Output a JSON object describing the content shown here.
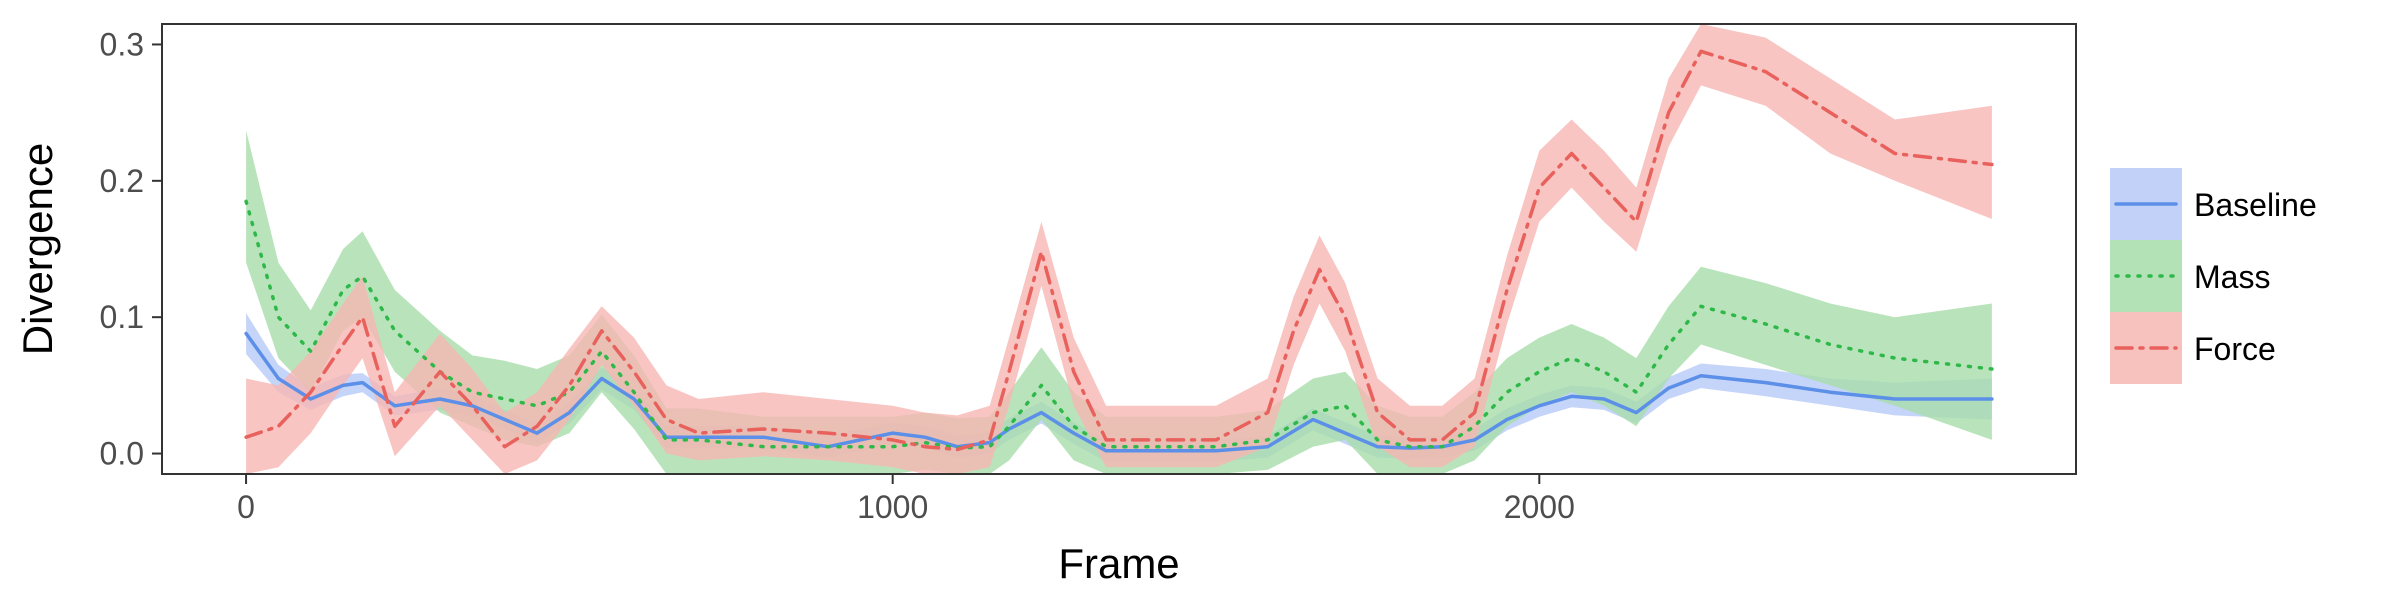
{
  "chart_data": {
    "type": "line",
    "title": "",
    "xlabel": "Frame",
    "ylabel": "Divergence",
    "xlim": [
      -130,
      2830
    ],
    "ylim": [
      -0.015,
      0.315
    ],
    "xticks": [
      0,
      1000,
      2000
    ],
    "xtick_labels": [
      "0",
      "1000",
      "2000"
    ],
    "yticks": [
      0.0,
      0.1,
      0.2,
      0.3
    ],
    "ytick_labels": [
      "0.0",
      "0.1",
      "0.2",
      "0.3"
    ],
    "grid": false,
    "legend_position": "right",
    "series": [
      {
        "name": "Baseline",
        "color": "#5b8fe8",
        "fill": "#b7c9f7",
        "line_style": "solid",
        "x": [
          0,
          50,
          100,
          150,
          180,
          230,
          300,
          350,
          400,
          450,
          500,
          550,
          600,
          650,
          700,
          800,
          900,
          1000,
          1050,
          1100,
          1150,
          1180,
          1230,
          1280,
          1330,
          1400,
          1500,
          1580,
          1650,
          1700,
          1750,
          1800,
          1850,
          1900,
          1950,
          2000,
          2050,
          2100,
          2150,
          2200,
          2250,
          2350,
          2450,
          2550,
          2700
        ],
        "y": [
          0.088,
          0.055,
          0.04,
          0.05,
          0.052,
          0.035,
          0.04,
          0.035,
          0.025,
          0.015,
          0.03,
          0.055,
          0.04,
          0.012,
          0.012,
          0.012,
          0.005,
          0.015,
          0.012,
          0.005,
          0.008,
          0.018,
          0.03,
          0.015,
          0.002,
          0.002,
          0.002,
          0.005,
          0.025,
          0.015,
          0.005,
          0.004,
          0.005,
          0.01,
          0.025,
          0.035,
          0.042,
          0.04,
          0.03,
          0.048,
          0.057,
          0.052,
          0.045,
          0.04,
          0.04
        ],
        "lower": [
          0.073,
          0.045,
          0.032,
          0.042,
          0.045,
          0.028,
          0.032,
          0.027,
          0.018,
          0.008,
          0.022,
          0.047,
          0.032,
          0.004,
          0.004,
          0.004,
          -0.003,
          0.007,
          0.004,
          -0.003,
          0.0,
          0.01,
          0.022,
          0.007,
          -0.006,
          -0.006,
          -0.006,
          -0.003,
          0.017,
          0.007,
          -0.003,
          -0.004,
          -0.003,
          0.002,
          0.017,
          0.027,
          0.034,
          0.032,
          0.022,
          0.04,
          0.048,
          0.042,
          0.035,
          0.028,
          0.025
        ],
        "upper": [
          0.103,
          0.065,
          0.048,
          0.058,
          0.059,
          0.042,
          0.048,
          0.043,
          0.032,
          0.022,
          0.038,
          0.063,
          0.048,
          0.02,
          0.02,
          0.02,
          0.013,
          0.023,
          0.02,
          0.013,
          0.016,
          0.026,
          0.038,
          0.023,
          0.01,
          0.01,
          0.01,
          0.013,
          0.033,
          0.023,
          0.013,
          0.012,
          0.013,
          0.018,
          0.033,
          0.043,
          0.05,
          0.048,
          0.038,
          0.056,
          0.066,
          0.062,
          0.055,
          0.052,
          0.055
        ]
      },
      {
        "name": "Mass",
        "color": "#2fb84a",
        "fill": "#a7ddaa",
        "line_style": "dotted",
        "x": [
          0,
          50,
          100,
          150,
          180,
          230,
          300,
          350,
          400,
          450,
          500,
          550,
          600,
          650,
          700,
          800,
          900,
          1000,
          1050,
          1100,
          1150,
          1180,
          1230,
          1280,
          1330,
          1400,
          1500,
          1580,
          1650,
          1700,
          1750,
          1800,
          1850,
          1900,
          1950,
          2000,
          2050,
          2100,
          2150,
          2200,
          2250,
          2350,
          2450,
          2550,
          2700
        ],
        "y": [
          0.185,
          0.1,
          0.075,
          0.12,
          0.13,
          0.09,
          0.06,
          0.045,
          0.04,
          0.035,
          0.045,
          0.075,
          0.045,
          0.01,
          0.01,
          0.005,
          0.005,
          0.005,
          0.008,
          0.004,
          0.005,
          0.02,
          0.05,
          0.02,
          0.005,
          0.005,
          0.005,
          0.01,
          0.03,
          0.035,
          0.01,
          0.005,
          0.005,
          0.02,
          0.045,
          0.06,
          0.07,
          0.06,
          0.045,
          0.08,
          0.108,
          0.095,
          0.08,
          0.07,
          0.062
        ],
        "lower": [
          0.14,
          0.07,
          0.045,
          0.09,
          0.1,
          0.06,
          0.03,
          0.02,
          0.01,
          0.005,
          0.015,
          0.045,
          0.018,
          -0.015,
          -0.015,
          -0.015,
          -0.015,
          -0.015,
          -0.012,
          -0.015,
          -0.015,
          -0.005,
          0.025,
          -0.005,
          -0.015,
          -0.015,
          -0.015,
          -0.012,
          0.005,
          0.01,
          -0.015,
          -0.015,
          -0.015,
          -0.005,
          0.02,
          0.035,
          0.045,
          0.035,
          0.02,
          0.055,
          0.08,
          0.065,
          0.05,
          0.035,
          0.01
        ],
        "upper": [
          0.237,
          0.14,
          0.105,
          0.15,
          0.163,
          0.12,
          0.09,
          0.072,
          0.068,
          0.062,
          0.072,
          0.102,
          0.072,
          0.033,
          0.033,
          0.027,
          0.027,
          0.027,
          0.03,
          0.026,
          0.027,
          0.045,
          0.078,
          0.045,
          0.027,
          0.027,
          0.027,
          0.032,
          0.055,
          0.06,
          0.035,
          0.027,
          0.027,
          0.045,
          0.07,
          0.085,
          0.095,
          0.085,
          0.07,
          0.108,
          0.137,
          0.125,
          0.11,
          0.1,
          0.11
        ]
      },
      {
        "name": "Force",
        "color": "#e8615c",
        "fill": "#f6b6b3",
        "line_style": "dashdot",
        "x": [
          0,
          50,
          100,
          150,
          180,
          230,
          300,
          350,
          400,
          450,
          500,
          550,
          600,
          650,
          700,
          800,
          900,
          1000,
          1050,
          1100,
          1150,
          1180,
          1230,
          1280,
          1330,
          1400,
          1500,
          1580,
          1620,
          1660,
          1700,
          1750,
          1800,
          1850,
          1900,
          1950,
          2000,
          2050,
          2100,
          2150,
          2200,
          2250,
          2350,
          2450,
          2550,
          2700
        ],
        "y": [
          0.012,
          0.02,
          0.045,
          0.08,
          0.1,
          0.02,
          0.06,
          0.035,
          0.005,
          0.02,
          0.05,
          0.09,
          0.06,
          0.025,
          0.015,
          0.018,
          0.015,
          0.01,
          0.005,
          0.003,
          0.01,
          0.06,
          0.148,
          0.06,
          0.01,
          0.01,
          0.01,
          0.03,
          0.09,
          0.135,
          0.1,
          0.03,
          0.01,
          0.01,
          0.03,
          0.12,
          0.195,
          0.22,
          0.195,
          0.17,
          0.25,
          0.295,
          0.28,
          0.25,
          0.22,
          0.212
        ],
        "lower": [
          -0.015,
          -0.01,
          0.015,
          0.05,
          0.07,
          -0.002,
          0.035,
          0.01,
          -0.015,
          -0.005,
          0.025,
          0.065,
          0.035,
          0.0,
          -0.005,
          -0.002,
          -0.005,
          -0.01,
          -0.015,
          -0.015,
          -0.01,
          0.035,
          0.123,
          0.035,
          -0.01,
          -0.01,
          -0.01,
          0.005,
          0.065,
          0.11,
          0.075,
          0.005,
          -0.01,
          -0.01,
          0.005,
          0.095,
          0.17,
          0.195,
          0.17,
          0.148,
          0.225,
          0.27,
          0.255,
          0.22,
          0.2,
          0.172
        ],
        "upper": [
          0.055,
          0.05,
          0.075,
          0.11,
          0.13,
          0.045,
          0.088,
          0.062,
          0.03,
          0.045,
          0.077,
          0.108,
          0.085,
          0.05,
          0.04,
          0.045,
          0.04,
          0.035,
          0.03,
          0.028,
          0.035,
          0.085,
          0.17,
          0.085,
          0.035,
          0.035,
          0.035,
          0.055,
          0.115,
          0.16,
          0.125,
          0.055,
          0.035,
          0.035,
          0.055,
          0.145,
          0.222,
          0.245,
          0.222,
          0.195,
          0.275,
          0.315,
          0.305,
          0.275,
          0.245,
          0.255
        ]
      }
    ]
  }
}
